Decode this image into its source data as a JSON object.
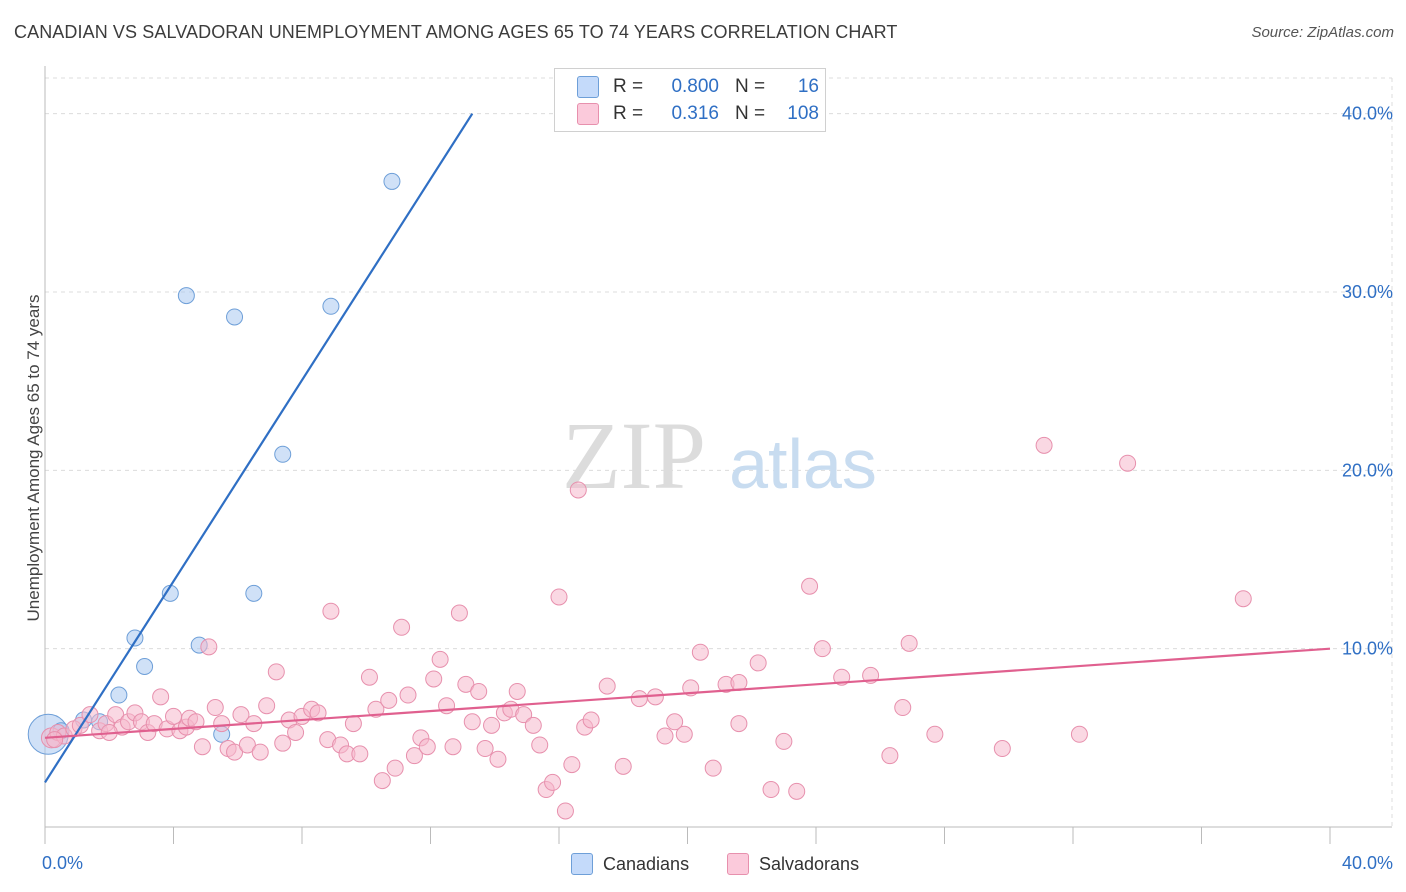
{
  "title": "CANADIAN VS SALVADORAN UNEMPLOYMENT AMONG AGES 65 TO 74 YEARS CORRELATION CHART",
  "source": "Source: ZipAtlas.com",
  "watermark": {
    "zip": "ZIP",
    "atlas": "atlas"
  },
  "legend": {
    "rows": [
      {
        "r_label": "R =",
        "r_value": "0.800",
        "n_label": "N =",
        "n_value": "16",
        "color": "#a9c8f0"
      },
      {
        "r_label": "R =",
        "r_value": "0.316",
        "n_label": "N =",
        "n_value": "108",
        "color": "#f5b8cc"
      }
    ]
  },
  "bottom_legend": [
    {
      "label": "Canadians",
      "color": "#a9c8f0"
    },
    {
      "label": "Salvadorans",
      "color": "#f5b8cc"
    }
  ],
  "chart_data": {
    "type": "scatter",
    "title": "CANADIAN VS SALVADORAN UNEMPLOYMENT AMONG AGES 65 TO 74 YEARS CORRELATION CHART",
    "xlabel": "",
    "ylabel": "Unemployment Among Ages 65 to 74 years",
    "xlim": [
      0,
      40
    ],
    "ylim": [
      0,
      42
    ],
    "x_tick_labels": [
      "0.0%",
      "40.0%"
    ],
    "y_ticks": [
      10,
      20,
      30,
      40
    ],
    "y_tick_labels": [
      "10.0%",
      "20.0%",
      "30.0%",
      "40.0%"
    ],
    "grid": true,
    "legend_position": "top-center",
    "series": [
      {
        "name": "Canadians",
        "color": "#a9c8f0",
        "stroke": "#6e9fd8",
        "line_color": "#2f6fc4",
        "trend": {
          "x0": 0,
          "y0": 2.5,
          "x1": 13.3,
          "y1": 40.0
        },
        "points": [
          [
            0.1,
            5.2,
            20
          ],
          [
            0.5,
            5.4,
            8
          ],
          [
            1.2,
            6.0,
            8
          ],
          [
            1.7,
            5.9,
            8
          ],
          [
            2.3,
            7.4,
            8
          ],
          [
            2.8,
            10.6,
            8
          ],
          [
            3.1,
            9.0,
            8
          ],
          [
            3.9,
            13.1,
            8
          ],
          [
            4.4,
            29.8,
            8
          ],
          [
            4.8,
            10.2,
            8
          ],
          [
            5.5,
            5.2,
            8
          ],
          [
            5.9,
            28.6,
            8
          ],
          [
            6.5,
            13.1,
            8
          ],
          [
            7.4,
            20.9,
            8
          ],
          [
            8.9,
            29.2,
            8
          ],
          [
            10.8,
            36.2,
            8
          ]
        ]
      },
      {
        "name": "Salvadorans",
        "color": "#f5b8cc",
        "stroke": "#e790ad",
        "line_color": "#e0608f",
        "trend": {
          "x0": 0,
          "y0": 5.0,
          "x1": 40.0,
          "y1": 10.0
        },
        "points": [
          [
            0.2,
            5.0,
            10
          ],
          [
            0.4,
            5.3,
            8
          ],
          [
            0.6,
            5.1,
            8
          ],
          [
            0.9,
            5.5,
            8
          ],
          [
            1.1,
            5.7,
            8
          ],
          [
            1.4,
            6.3,
            8
          ],
          [
            1.7,
            5.4,
            8
          ],
          [
            1.9,
            5.8,
            8
          ],
          [
            2.2,
            6.3,
            8
          ],
          [
            2.4,
            5.6,
            8
          ],
          [
            2.6,
            5.9,
            8
          ],
          [
            2.8,
            6.4,
            8
          ],
          [
            3.0,
            5.9,
            8
          ],
          [
            3.2,
            5.3,
            8
          ],
          [
            3.4,
            5.8,
            8
          ],
          [
            3.6,
            7.3,
            8
          ],
          [
            3.8,
            5.5,
            8
          ],
          [
            4.0,
            6.2,
            8
          ],
          [
            4.2,
            5.4,
            8
          ],
          [
            4.4,
            5.6,
            8
          ],
          [
            4.5,
            6.1,
            8
          ],
          [
            4.7,
            5.9,
            8
          ],
          [
            4.9,
            4.5,
            8
          ],
          [
            5.1,
            10.1,
            8
          ],
          [
            5.3,
            6.7,
            8
          ],
          [
            5.5,
            5.8,
            8
          ],
          [
            5.7,
            4.4,
            8
          ],
          [
            5.9,
            4.2,
            8
          ],
          [
            6.1,
            6.3,
            8
          ],
          [
            6.3,
            4.6,
            8
          ],
          [
            6.5,
            5.8,
            8
          ],
          [
            6.7,
            4.2,
            8
          ],
          [
            6.9,
            6.8,
            8
          ],
          [
            7.2,
            8.7,
            8
          ],
          [
            7.4,
            4.7,
            8
          ],
          [
            7.6,
            6.0,
            8
          ],
          [
            7.8,
            5.3,
            8
          ],
          [
            8.0,
            6.2,
            8
          ],
          [
            8.3,
            6.6,
            8
          ],
          [
            8.5,
            6.4,
            8
          ],
          [
            8.8,
            4.9,
            8
          ],
          [
            8.9,
            12.1,
            8
          ],
          [
            9.2,
            4.6,
            8
          ],
          [
            9.4,
            4.1,
            8
          ],
          [
            9.6,
            5.8,
            8
          ],
          [
            9.8,
            4.1,
            8
          ],
          [
            10.1,
            8.4,
            8
          ],
          [
            10.3,
            6.6,
            8
          ],
          [
            10.5,
            2.6,
            8
          ],
          [
            10.7,
            7.1,
            8
          ],
          [
            10.9,
            3.3,
            8
          ],
          [
            11.1,
            11.2,
            8
          ],
          [
            11.3,
            7.4,
            8
          ],
          [
            11.5,
            4.0,
            8
          ],
          [
            11.7,
            5.0,
            8
          ],
          [
            11.9,
            4.5,
            8
          ],
          [
            12.1,
            8.3,
            8
          ],
          [
            12.3,
            9.4,
            8
          ],
          [
            12.5,
            6.8,
            8
          ],
          [
            12.7,
            4.5,
            8
          ],
          [
            12.9,
            12.0,
            8
          ],
          [
            13.1,
            8.0,
            8
          ],
          [
            13.3,
            5.9,
            8
          ],
          [
            13.5,
            7.6,
            8
          ],
          [
            13.7,
            4.4,
            8
          ],
          [
            13.9,
            5.7,
            8
          ],
          [
            14.1,
            3.8,
            8
          ],
          [
            14.3,
            6.4,
            8
          ],
          [
            14.5,
            6.6,
            8
          ],
          [
            14.7,
            7.6,
            8
          ],
          [
            14.9,
            6.3,
            8
          ],
          [
            15.2,
            5.7,
            8
          ],
          [
            15.4,
            4.6,
            8
          ],
          [
            15.6,
            2.1,
            8
          ],
          [
            15.8,
            2.5,
            8
          ],
          [
            16.0,
            12.9,
            8
          ],
          [
            16.2,
            0.9,
            8
          ],
          [
            16.4,
            3.5,
            8
          ],
          [
            16.6,
            18.9,
            8
          ],
          [
            16.8,
            5.6,
            8
          ],
          [
            17.0,
            6.0,
            8
          ],
          [
            17.5,
            7.9,
            8
          ],
          [
            18.0,
            3.4,
            8
          ],
          [
            18.5,
            7.2,
            8
          ],
          [
            19.0,
            7.3,
            8
          ],
          [
            19.3,
            5.1,
            8
          ],
          [
            19.6,
            5.9,
            8
          ],
          [
            19.9,
            5.2,
            8
          ],
          [
            20.1,
            7.8,
            8
          ],
          [
            20.4,
            9.8,
            8
          ],
          [
            20.8,
            3.3,
            8
          ],
          [
            21.2,
            8.0,
            8
          ],
          [
            21.6,
            5.8,
            8
          ],
          [
            21.6,
            8.1,
            8
          ],
          [
            22.2,
            9.2,
            8
          ],
          [
            23.0,
            4.8,
            8
          ],
          [
            22.6,
            2.1,
            8
          ],
          [
            23.4,
            2.0,
            8
          ],
          [
            23.8,
            13.5,
            8
          ],
          [
            24.2,
            10.0,
            8
          ],
          [
            25.7,
            8.5,
            8
          ],
          [
            26.3,
            4.0,
            8
          ],
          [
            26.7,
            6.7,
            8
          ],
          [
            26.9,
            10.3,
            8
          ],
          [
            27.7,
            5.2,
            8
          ],
          [
            29.8,
            4.4,
            8
          ],
          [
            31.1,
            21.4,
            8
          ],
          [
            32.2,
            5.2,
            8
          ],
          [
            33.7,
            20.4,
            8
          ],
          [
            37.3,
            12.8,
            8
          ],
          [
            0.3,
            4.9,
            8
          ],
          [
            2.0,
            5.3,
            8
          ],
          [
            24.8,
            8.4,
            8
          ]
        ]
      }
    ]
  }
}
